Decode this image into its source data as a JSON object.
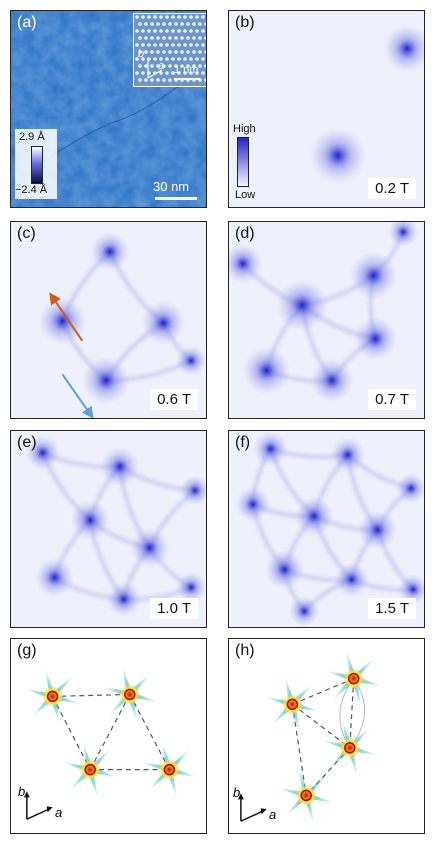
{
  "panels": [
    {
      "id": "a",
      "label": "(a)"
    },
    {
      "id": "b",
      "label": "(b)",
      "field": "0.2 T"
    },
    {
      "id": "c",
      "label": "(c)",
      "field": "0.6 T"
    },
    {
      "id": "d",
      "label": "(d)",
      "field": "0.7 T"
    },
    {
      "id": "e",
      "label": "(e)",
      "field": "1.0 T"
    },
    {
      "id": "f",
      "label": "(f)",
      "field": "1.5 T"
    },
    {
      "id": "g",
      "label": "(g)"
    },
    {
      "id": "h",
      "label": "(h)"
    }
  ],
  "panel_a": {
    "colorbar_max": "2.9 Å",
    "colorbar_min": "−2.4 Å",
    "scale_label": "30 nm",
    "inset_scale_label": "1 nm",
    "axis_b": "b",
    "axis_a": "a"
  },
  "panel_b": {
    "colorbar_high": "High",
    "colorbar_low": "Low"
  },
  "panel_g": {
    "axis_b": "b",
    "axis_a": "a"
  },
  "panel_h": {
    "axis_b": "b",
    "axis_a": "a"
  },
  "colors": {
    "topo_bg": "#2a6fc4",
    "map_bg": "#eef0fb",
    "vortex": "#3a3fd0",
    "arrow_orange": "#d35a1e",
    "arrow_blue": "#5a9fd8"
  }
}
